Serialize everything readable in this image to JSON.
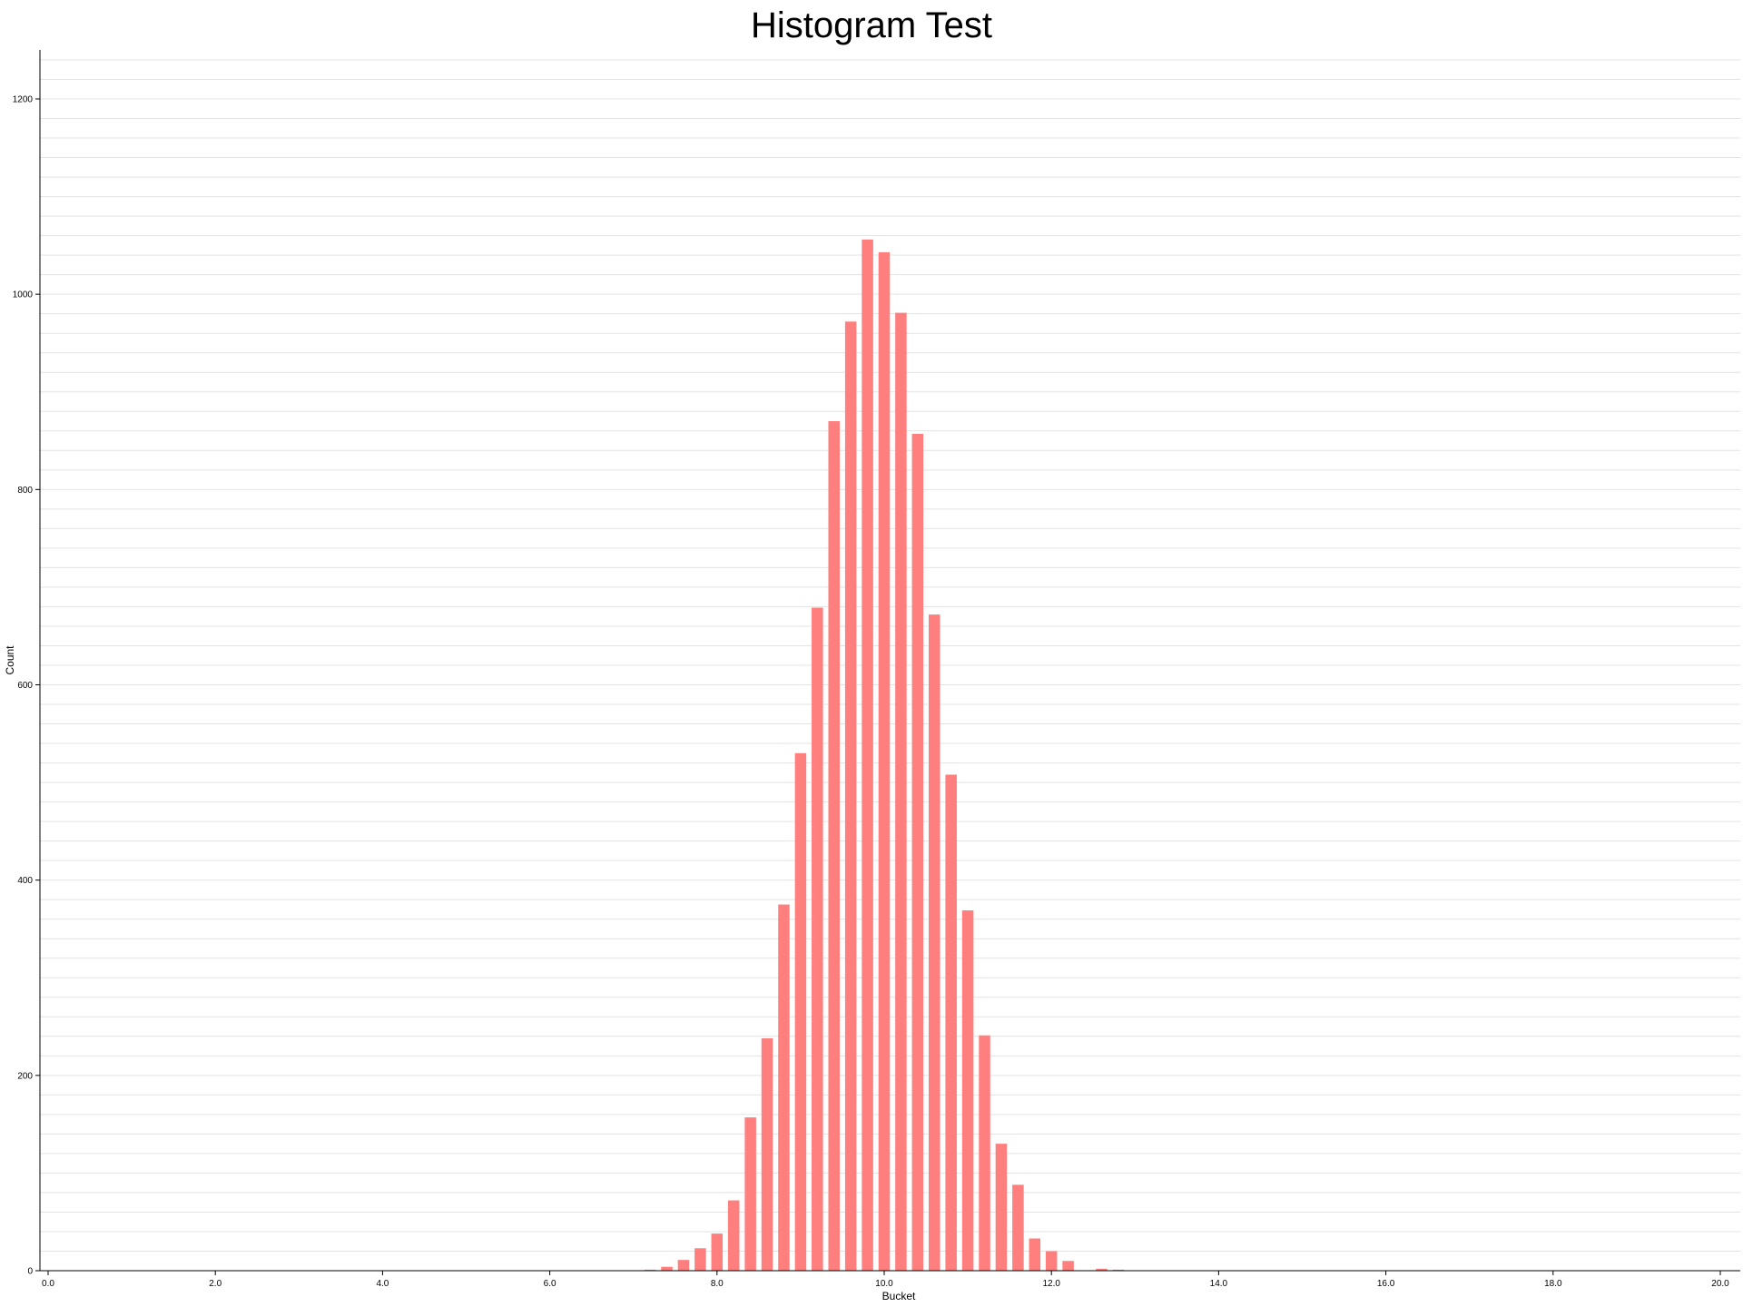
{
  "chart_data": {
    "type": "bar",
    "title": "Histogram Test",
    "xlabel": "Bucket",
    "ylabel": "Count",
    "xlim": [
      0,
      20
    ],
    "ylim": [
      0,
      1250
    ],
    "x_ticks": [
      "0.0",
      "2.0",
      "4.0",
      "6.0",
      "8.0",
      "10.0",
      "12.0",
      "14.0",
      "16.0",
      "18.0",
      "20.0"
    ],
    "y_ticks": [
      "0",
      "200",
      "400",
      "600",
      "800",
      "1000",
      "1200"
    ],
    "grid": true,
    "bar_color": "#ff7f7f",
    "bin_width": 0.2,
    "x": [
      7.2,
      7.4,
      7.6,
      7.8,
      8.0,
      8.2,
      8.4,
      8.6,
      8.8,
      9.0,
      9.2,
      9.4,
      9.6,
      9.8,
      10.0,
      10.2,
      10.4,
      10.6,
      10.8,
      11.0,
      11.2,
      11.4,
      11.6,
      11.8,
      12.0,
      12.2,
      12.4,
      12.6,
      12.8
    ],
    "values": [
      1,
      4,
      11,
      23,
      38,
      72,
      157,
      238,
      375,
      530,
      679,
      870,
      972,
      1056,
      1043,
      981,
      857,
      672,
      508,
      369,
      241,
      130,
      88,
      33,
      20,
      10,
      0,
      2,
      1
    ]
  }
}
